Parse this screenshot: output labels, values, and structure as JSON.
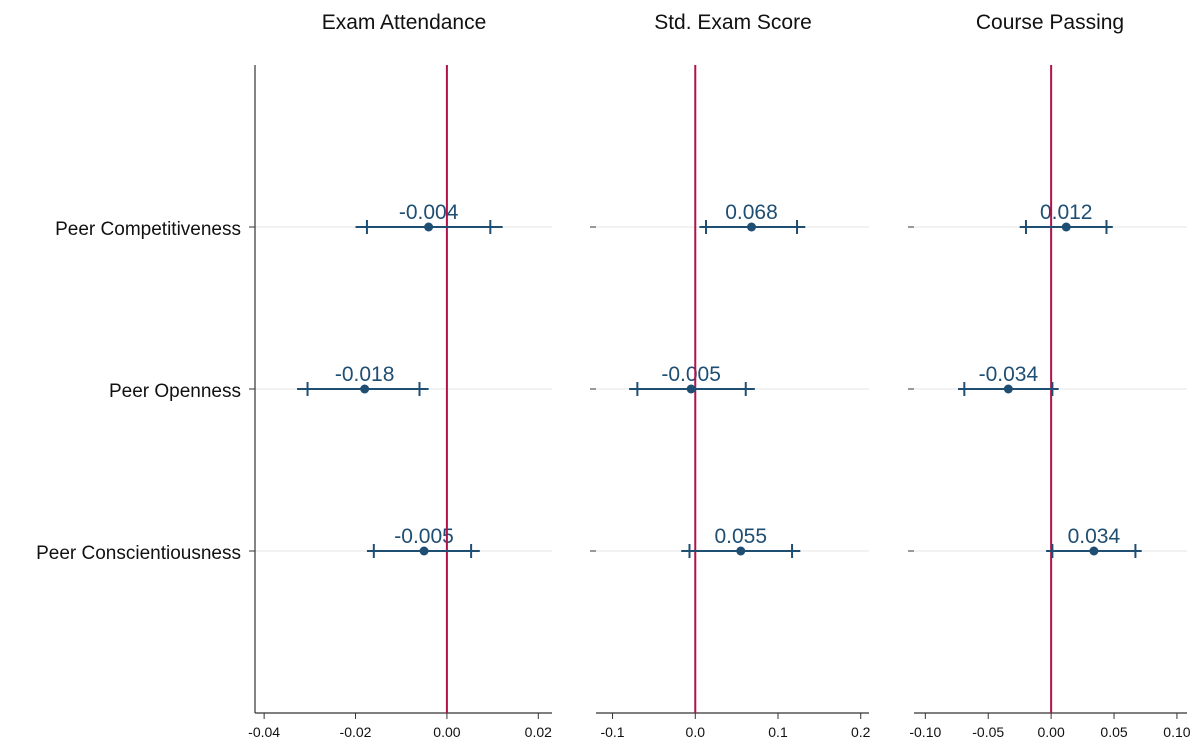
{
  "colors": {
    "series": "#1f4e73",
    "reference_line": "#b0124a",
    "grid": "#e6e6e6",
    "axis": "#333333"
  },
  "chart_data": {
    "type": "coefficient-plot",
    "rows": [
      "Peer Competitiveness",
      "Peer Openness",
      "Peer Conscientiousness"
    ],
    "reference_value": 0,
    "grid": "horizontal at each row",
    "panels": [
      {
        "title": "Exam Attendance",
        "xlim": [
          -0.042,
          0.023
        ],
        "ticks": [
          -0.04,
          -0.02,
          0.0,
          0.02
        ],
        "tick_labels": [
          "-0.04",
          "-0.02",
          "0.00",
          "0.02"
        ],
        "points": [
          {
            "row": "Peer Competitiveness",
            "estimate": -0.004,
            "label": "-0.004",
            "ci90": [
              -0.0175,
              0.0095
            ],
            "ci95": [
              -0.02,
              0.0122
            ]
          },
          {
            "row": "Peer Openness",
            "estimate": -0.018,
            "label": "-0.018",
            "ci90": [
              -0.0305,
              -0.006
            ],
            "ci95": [
              -0.0328,
              -0.004
            ]
          },
          {
            "row": "Peer Conscientiousness",
            "estimate": -0.005,
            "label": "-0.005",
            "ci90": [
              -0.016,
              0.0053
            ],
            "ci95": [
              -0.0175,
              0.0072
            ]
          }
        ]
      },
      {
        "title": "Std. Exam Score",
        "xlim": [
          -0.12,
          0.21
        ],
        "ticks": [
          -0.1,
          0.0,
          0.1,
          0.2
        ],
        "tick_labels": [
          "-0.1",
          "0.0",
          "0.1",
          "0.2"
        ],
        "points": [
          {
            "row": "Peer Competitiveness",
            "estimate": 0.068,
            "label": "0.068",
            "ci90": [
              0.013,
              0.123
            ],
            "ci95": [
              0.005,
              0.133
            ]
          },
          {
            "row": "Peer Openness",
            "estimate": -0.005,
            "label": "-0.005",
            "ci90": [
              -0.07,
              0.061
            ],
            "ci95": [
              -0.08,
              0.072
            ]
          },
          {
            "row": "Peer Conscientiousness",
            "estimate": 0.055,
            "label": "0.055",
            "ci90": [
              -0.007,
              0.117
            ],
            "ci95": [
              -0.017,
              0.127
            ]
          }
        ]
      },
      {
        "title": "Course Passing",
        "xlim": [
          -0.109,
          0.108
        ],
        "ticks": [
          -0.1,
          -0.05,
          0.0,
          0.05,
          0.1
        ],
        "tick_labels": [
          "-0.10",
          "-0.05",
          "0.00",
          "0.05",
          "0.10"
        ],
        "points": [
          {
            "row": "Peer Competitiveness",
            "estimate": 0.012,
            "label": "0.012",
            "ci90": [
              -0.02,
              0.044
            ],
            "ci95": [
              -0.025,
              0.049
            ]
          },
          {
            "row": "Peer Openness",
            "estimate": -0.034,
            "label": "-0.034",
            "ci90": [
              -0.069,
              0.001
            ],
            "ci95": [
              -0.074,
              0.006
            ]
          },
          {
            "row": "Peer Conscientiousness",
            "estimate": 0.034,
            "label": "0.034",
            "ci90": [
              0.001,
              0.067
            ],
            "ci95": [
              -0.004,
              0.072
            ]
          }
        ]
      }
    ]
  }
}
